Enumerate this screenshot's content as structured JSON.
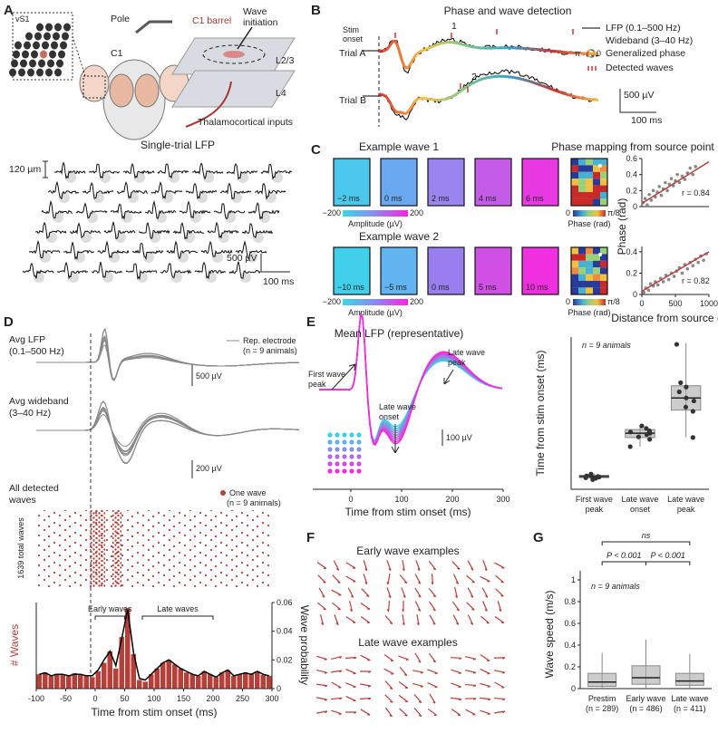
{
  "figure": {
    "panel_labels": [
      "A",
      "B",
      "C",
      "D",
      "E",
      "F",
      "G"
    ],
    "a": {
      "vs1": "vS1",
      "pole": "Pole",
      "c1": "C1",
      "c1_barrel": "C1 barrel",
      "wave_initiation": [
        "Wave",
        "initiation"
      ],
      "l23": "L2/3",
      "l4": "L4",
      "thalamocortical": "Thalamocortical inputs",
      "single_trial_title": "Single-trial LFP",
      "scale_space": "120 µm",
      "scale_voltage": "500 µV",
      "scale_time": "100 ms"
    },
    "b": {
      "title": "Phase and wave detection",
      "stim_onset": [
        "Stim",
        "onset"
      ],
      "wave_1": "1",
      "wave_2": "2",
      "trial_a": "Trial A",
      "trial_b": "Trial B",
      "legend": [
        "LFP (0.1–500 Hz)",
        "Wideband (3–40 Hz)",
        "Generalized phase",
        "Detected waves"
      ],
      "phase_pi": "π",
      "phase_zero": "0",
      "scale_voltage": "500 µV",
      "scale_time": "100 ms"
    },
    "c": {
      "wave1_title": "Example wave 1",
      "wave2_title": "Example wave 2",
      "phase_title": "Phase mapping from source point",
      "wave1_times": [
        "−2 ms",
        "0 ms",
        "2 ms",
        "4 ms",
        "6 ms"
      ],
      "wave2_times": [
        "−10 ms",
        "−5 ms",
        "0 ms",
        "5 ms",
        "10 ms"
      ],
      "amp_min": "−200",
      "amp_max": "200",
      "amp_label": "Amplitude (µV)",
      "phase_min": "0",
      "phase_max": "π/8",
      "phase_label": "Phase (rad)"
    },
    "d": {
      "avg_lfp": [
        "Avg LFP",
        "(0.1–500 Hz)"
      ],
      "rep_electrode": [
        "Rep. electrode",
        "(n = 9 animals)"
      ],
      "scale_lfp": "500 µV",
      "avg_wideband": [
        "Avg wideband",
        "(3–40 Hz)"
      ],
      "scale_wideband": "200 µV",
      "all_detected": [
        "All detected",
        "waves"
      ],
      "one_wave": [
        "One wave",
        "(n = 9 animals)"
      ],
      "total_waves": "1639 total waves"
    },
    "e": {
      "first_peak": [
        "First wave",
        "peak"
      ],
      "late_onset": [
        "Late wave",
        "onset"
      ],
      "late_peak": [
        "Late wave",
        "peak"
      ],
      "scale": "100 µV"
    },
    "f": {
      "early": "Early wave examples",
      "late": "Late wave examples"
    }
  },
  "chart_data": [
    {
      "type": "scatter",
      "color": "#888888",
      "fit_color": "#b5403a",
      "xlim": [
        0,
        1000
      ],
      "ylim": [
        0,
        0.6
      ],
      "yticks": [
        0,
        0.2,
        0.4,
        0.6
      ],
      "x": [
        20,
        50,
        80,
        110,
        140,
        170,
        200,
        230,
        260,
        290,
        320,
        350,
        380,
        410,
        440,
        470,
        500,
        530,
        560,
        600,
        640,
        680,
        720,
        760,
        800
      ],
      "values": [
        0.05,
        0.1,
        0.02,
        0.15,
        0.08,
        0.2,
        0.12,
        0.18,
        0.25,
        0.14,
        0.22,
        0.3,
        0.2,
        0.28,
        0.35,
        0.26,
        0.32,
        0.4,
        0.3,
        0.38,
        0.34,
        0.42,
        0.48,
        0.4,
        0.5
      ],
      "fit": {
        "x": [
          0,
          1000
        ],
        "values": [
          0.04,
          0.56
        ]
      },
      "annotation": "r = 0.84"
    },
    {
      "type": "scatter",
      "color": "#888888",
      "fit_color": "#b5403a",
      "xlim": [
        0,
        1000
      ],
      "ylim": [
        0,
        0.45
      ],
      "yticks": [
        0,
        0.2,
        0.4
      ],
      "xticks": [
        0,
        500,
        1000
      ],
      "x": [
        30,
        60,
        100,
        130,
        170,
        200,
        240,
        280,
        320,
        360,
        400,
        440,
        480,
        520,
        560,
        600,
        640,
        680,
        720,
        760,
        800,
        840,
        880,
        920,
        960
      ],
      "values": [
        0.02,
        0.06,
        0.04,
        0.1,
        0.08,
        0.12,
        0.09,
        0.15,
        0.12,
        0.18,
        0.14,
        0.2,
        0.17,
        0.22,
        0.25,
        0.2,
        0.28,
        0.24,
        0.3,
        0.27,
        0.33,
        0.3,
        0.36,
        0.32,
        0.38
      ],
      "fit": {
        "x": [
          0,
          1000
        ],
        "values": [
          0.03,
          0.4
        ]
      },
      "annotation": "r = 0.82",
      "xlabel": "Distance from source (µm)",
      "ylabel": "Phase (rad)"
    },
    {
      "type": "histogram",
      "xlim": [
        -100,
        300
      ],
      "xticks": [
        -100,
        -50,
        0,
        50,
        100,
        150,
        200,
        250,
        300
      ],
      "ylim": [
        0,
        150
      ],
      "y2lim": [
        0,
        0.06
      ],
      "y2ticks": [
        0,
        0.02,
        0.04,
        0.06
      ],
      "xlabel": "Time from stim onset (ms)",
      "ylabel": "# Waves",
      "y2label": "Wave probability",
      "bins": [
        -100,
        -90,
        -80,
        -70,
        -60,
        -50,
        -40,
        -30,
        -20,
        -10,
        0,
        10,
        20,
        30,
        40,
        50,
        60,
        70,
        80,
        90,
        100,
        110,
        120,
        130,
        140,
        150,
        160,
        170,
        180,
        190,
        200,
        210,
        220,
        230,
        240,
        250,
        260,
        270,
        280,
        290,
        300
      ],
      "series": [
        {
          "color": "#b5403a",
          "values": [
            25,
            28,
            22,
            26,
            24,
            22,
            27,
            25,
            23,
            20,
            30,
            45,
            65,
            35,
            90,
            140,
            60,
            15,
            12,
            25,
            35,
            45,
            50,
            42,
            35,
            28,
            25,
            22,
            30,
            25,
            20,
            28,
            32,
            22,
            25,
            28,
            26,
            30,
            24,
            22
          ]
        },
        {
          "axis": "y2",
          "color": "#000000",
          "values": [
            0.01,
            0.011,
            0.009,
            0.01,
            0.01,
            0.009,
            0.01,
            0.01,
            0.009,
            0.009,
            0.013,
            0.02,
            0.026,
            0.016,
            0.035,
            0.055,
            0.025,
            0.007,
            0.006,
            0.01,
            0.014,
            0.018,
            0.02,
            0.017,
            0.014,
            0.012,
            0.01,
            0.009,
            0.012,
            0.01,
            0.008,
            0.011,
            0.013,
            0.009,
            0.01,
            0.011,
            0.01,
            0.012,
            0.01,
            0.009
          ]
        }
      ],
      "annotations": [
        {
          "text": "Early waves",
          "x": [
            0,
            50
          ]
        },
        {
          "text": "Late waves",
          "x": [
            80,
            200
          ]
        }
      ]
    },
    {
      "type": "box",
      "ylim": [
        0,
        250
      ],
      "ylabel": "Time from stim onset (ms)",
      "annotation": "n = 9 animals",
      "color": "#aaaaaa",
      "point_color": "#333333",
      "categories": [
        [
          "First wave",
          "peak"
        ],
        [
          "Late wave",
          "onset"
        ],
        [
          "Late wave",
          "peak"
        ]
      ],
      "boxes": [
        {
          "min": 15,
          "q1": 19,
          "median": 21,
          "q3": 23,
          "max": 26,
          "points": [
            16,
            18,
            19,
            20,
            21,
            21,
            22,
            23,
            25
          ]
        },
        {
          "min": 70,
          "q1": 85,
          "median": 92,
          "q3": 98,
          "max": 105,
          "points": [
            70,
            82,
            86,
            90,
            92,
            94,
            96,
            100,
            104
          ]
        },
        {
          "min": 85,
          "q1": 130,
          "median": 150,
          "q3": 170,
          "max": 240,
          "points": [
            85,
            128,
            135,
            145,
            150,
            160,
            168,
            175,
            238
          ]
        }
      ]
    },
    {
      "type": "box",
      "ylim": [
        0,
        1
      ],
      "yticks": [
        0,
        0.2,
        0.4,
        0.6,
        0.8,
        1
      ],
      "ylabel": "Wave speed (m/s)",
      "annotation": "n = 9 animals",
      "color": "#aaaaaa",
      "categories": [
        [
          "Prestim",
          "(n = 289)"
        ],
        [
          "Early wave",
          "(n = 486)"
        ],
        [
          "Late wave",
          "(n = 411)"
        ]
      ],
      "boxes": [
        {
          "min": 0,
          "q1": 0.02,
          "median": 0.06,
          "q3": 0.14,
          "max": 0.33
        },
        {
          "min": 0,
          "q1": 0.04,
          "median": 0.1,
          "q3": 0.21,
          "max": 0.45
        },
        {
          "min": 0,
          "q1": 0.03,
          "median": 0.07,
          "q3": 0.14,
          "max": 0.32
        }
      ],
      "comparisons": [
        {
          "text": "ns",
          "between": [
            0,
            2
          ]
        },
        {
          "text": "P < 0.001",
          "between": [
            0,
            1
          ]
        },
        {
          "text": "P < 0.001",
          "between": [
            1,
            2
          ]
        }
      ]
    },
    {
      "type": "line",
      "title": "Mean LFP (representative)",
      "xlim": [
        -75,
        300
      ],
      "xticks": [
        0,
        100,
        200,
        300
      ],
      "xlabel": "Time from stim onset (ms)"
    }
  ]
}
